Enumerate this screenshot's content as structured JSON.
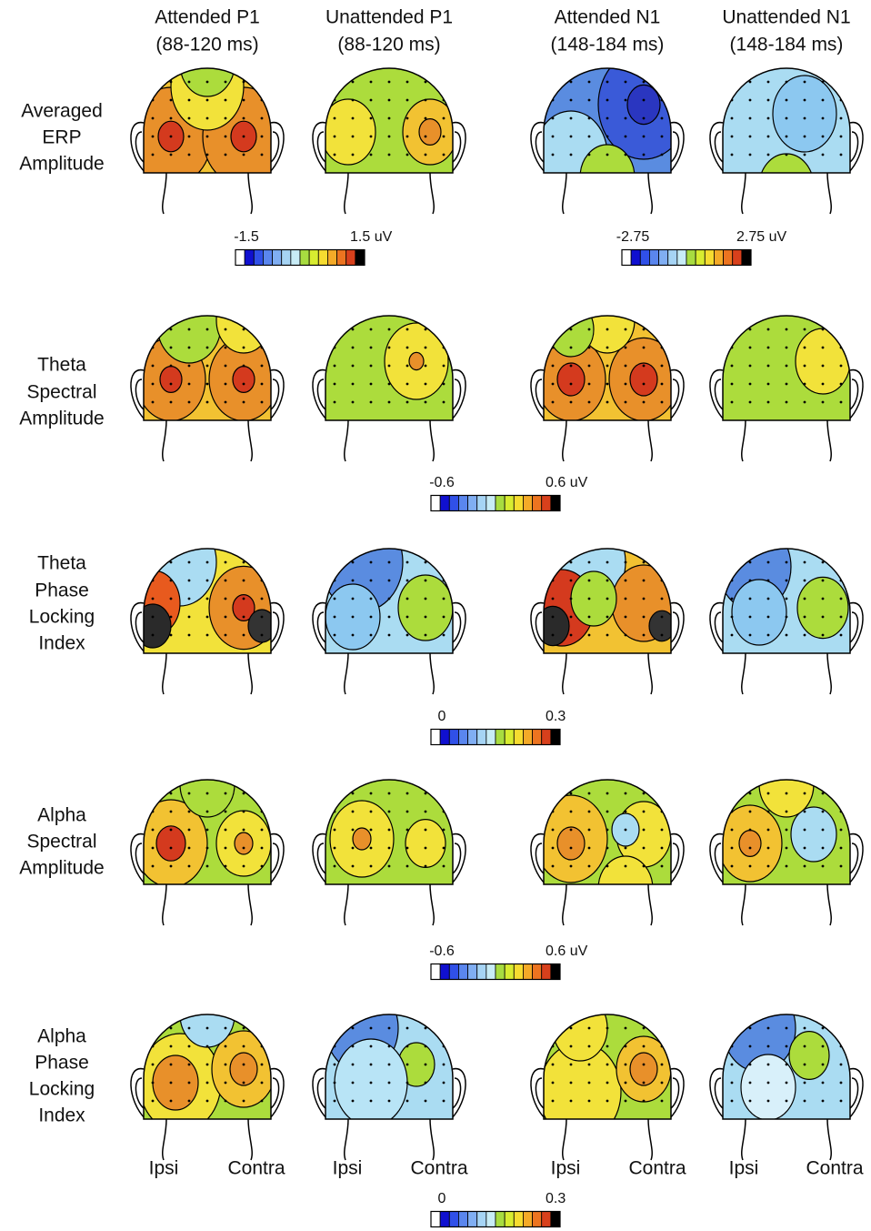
{
  "columns": [
    {
      "title": "Attended P1",
      "window": "(88-120 ms)"
    },
    {
      "title": "Unattended P1",
      "window": "(88-120 ms)"
    },
    {
      "title": "Attended N1",
      "window": "(148-184 ms)"
    },
    {
      "title": "Unattended N1",
      "window": "(148-184 ms)"
    }
  ],
  "rows": [
    {
      "label": [
        "Averaged",
        "ERP",
        "Amplitude"
      ]
    },
    {
      "label": [
        "Theta",
        "Spectral",
        "Amplitude"
      ]
    },
    {
      "label": [
        "Theta",
        "Phase",
        "Locking",
        "Index"
      ]
    },
    {
      "label": [
        "Alpha",
        "Spectral",
        "Amplitude"
      ]
    },
    {
      "label": [
        "Alpha",
        "Phase",
        "Locking",
        "Index"
      ]
    }
  ],
  "colorbars": [
    {
      "min": "-1.5",
      "max": "1.5 uV"
    },
    {
      "min": "-2.75",
      "max": "2.75 uV"
    },
    {
      "min": "-0.6",
      "max": "0.6 uV"
    },
    {
      "min": "0",
      "max": "0.3"
    },
    {
      "min": "-0.6",
      "max": "0.6 uV"
    },
    {
      "min": "0",
      "max": "0.3"
    }
  ],
  "bottom_labels": [
    {
      "left": "Ipsi",
      "right": "Contra"
    },
    {
      "left": "Ipsi",
      "right": "Contra"
    },
    {
      "left": "Ipsi",
      "right": "Contra"
    },
    {
      "left": "Ipsi",
      "right": "Contra"
    }
  ]
}
